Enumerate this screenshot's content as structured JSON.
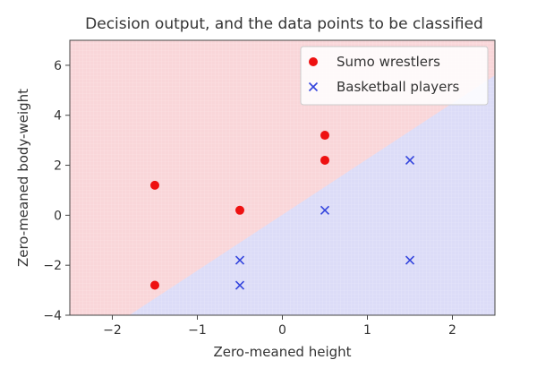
{
  "chart_data": {
    "type": "scatter",
    "title": "Decision output, and the data points to be classified",
    "xlabel": "Zero-meaned height",
    "ylabel": "Zero-meaned body-weight",
    "xlim": [
      -2.5,
      2.5
    ],
    "ylim": [
      -4,
      7
    ],
    "xticks": [
      -2,
      -1,
      0,
      1,
      2
    ],
    "yticks": [
      -4,
      -2,
      0,
      2,
      4,
      6
    ],
    "xtick_labels": [
      "−2",
      "−1",
      "0",
      "1",
      "2"
    ],
    "ytick_labels": [
      "−4",
      "−2",
      "0",
      "2",
      "4",
      "6"
    ],
    "legend_position": "top-right",
    "background": {
      "type": "decision-region",
      "boundary": [
        [
          -1.8,
          -4
        ],
        [
          2.5,
          5.6
        ]
      ],
      "upper_region_color": "#f9d6d9",
      "lower_region_color": "#dcdcf7"
    },
    "series": [
      {
        "name": "Sumo wrestlers",
        "marker": "circle",
        "color": "#ee1111",
        "points": [
          [
            -1.5,
            1.2
          ],
          [
            -1.5,
            -2.8
          ],
          [
            -0.5,
            0.2
          ],
          [
            0.5,
            3.2
          ],
          [
            0.5,
            2.2
          ]
        ]
      },
      {
        "name": "Basketball players",
        "marker": "x",
        "color": "#3344dd",
        "points": [
          [
            -0.5,
            -1.8
          ],
          [
            -0.5,
            -2.8
          ],
          [
            0.5,
            0.2
          ],
          [
            1.5,
            2.2
          ],
          [
            1.5,
            -1.8
          ]
        ]
      }
    ]
  }
}
